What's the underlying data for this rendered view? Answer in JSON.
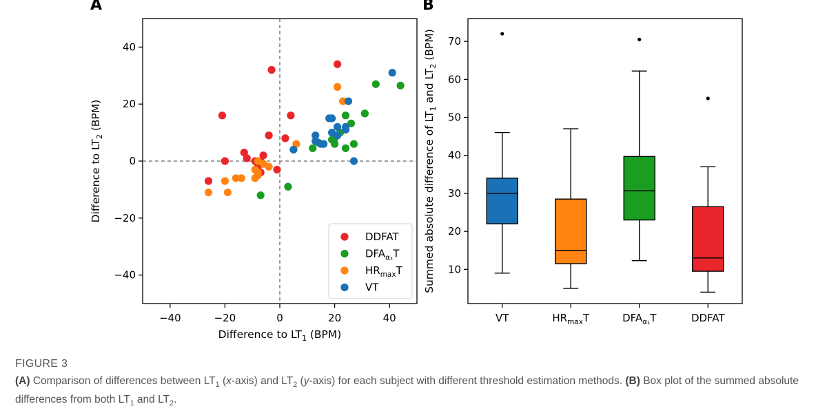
{
  "panel_a_letter": "A",
  "panel_b_letter": "B",
  "figure_label": "FIGURE 3",
  "caption": {
    "a_tag": "(A)",
    "a_text_1": " Comparison of differences between LT",
    "a_sub_1": "1",
    "a_text_2": " (",
    "a_x_italic": "x",
    "a_text_3": "-axis) and LT",
    "a_sub_2": "2",
    "a_text_4": " (",
    "a_y_italic": "y",
    "a_text_5": "-axis) for each subject with different threshold estimation methods. ",
    "b_tag": "(B)",
    "b_text_1": " Box plot of the summed absolute differences from both LT",
    "b_sub_1": "1",
    "b_text_2": " and LT",
    "b_sub_2": "2",
    "b_text_3": "."
  },
  "colors": {
    "DDFAT": "#e8262b",
    "DFA": "#1a9e22",
    "HRmaxT": "#ff8412",
    "VT": "#1a71b5"
  },
  "chart_data": [
    {
      "type": "scatter",
      "panel": "A",
      "xlabel": {
        "prefix": "Difference to LT",
        "sub": "1",
        "suffix": " (BPM)"
      },
      "ylabel": {
        "prefix": "Difference to LT",
        "sub": "2",
        "suffix": " (BPM)"
      },
      "xlim": [
        -50,
        50
      ],
      "ylim": [
        -50,
        50
      ],
      "xticks": [
        -40,
        -20,
        0,
        20,
        40
      ],
      "yticks": [
        -40,
        -20,
        0,
        20,
        40
      ],
      "reference_lines": {
        "x": 0,
        "y": 0,
        "style": "dashed"
      },
      "legend": {
        "placement": "lower-right",
        "entries": [
          {
            "key": "DDFAT",
            "label": "DDFAT",
            "sub": "",
            "tail": ""
          },
          {
            "key": "DFA",
            "label": "DFA",
            "sub": "α₁",
            "tail": "T"
          },
          {
            "key": "HRmaxT",
            "label": "HR",
            "sub": "max",
            "tail": "T"
          },
          {
            "key": "VT",
            "label": "VT",
            "sub": "",
            "tail": ""
          }
        ]
      },
      "series": [
        {
          "name": "DDFAT",
          "color_key": "DDFAT",
          "points": [
            [
              -3,
              32
            ],
            [
              21,
              34
            ],
            [
              -21,
              16
            ],
            [
              4,
              16
            ],
            [
              -4,
              9
            ],
            [
              2,
              8
            ],
            [
              -13,
              3
            ],
            [
              -6,
              2
            ],
            [
              -12,
              1
            ],
            [
              -20,
              0
            ],
            [
              -9,
              0
            ],
            [
              -7,
              0
            ],
            [
              -1,
              -3
            ],
            [
              -7,
              -4
            ],
            [
              -26,
              -7
            ],
            [
              -8,
              -2
            ]
          ]
        },
        {
          "name": "DFAα1T",
          "color_key": "DFA",
          "points": [
            [
              35,
              27
            ],
            [
              44,
              26.5
            ],
            [
              31,
              16.7
            ],
            [
              24,
              16
            ],
            [
              26,
              13.2
            ],
            [
              22,
              10
            ],
            [
              20,
              8
            ],
            [
              19,
              7.5
            ],
            [
              14,
              6.5
            ],
            [
              20,
              6
            ],
            [
              27,
              6
            ],
            [
              12,
              4.5
            ],
            [
              24,
              4.5
            ],
            [
              3,
              -9
            ],
            [
              -7,
              -12
            ]
          ]
        },
        {
          "name": "HRmaxT",
          "color_key": "HRmaxT",
          "points": [
            [
              21,
              26
            ],
            [
              23,
              21
            ],
            [
              6,
              6
            ],
            [
              -8,
              0
            ],
            [
              -6,
              -1
            ],
            [
              -4,
              -2
            ],
            [
              -9,
              -3
            ],
            [
              -8,
              -4
            ],
            [
              -8,
              -5
            ],
            [
              -9,
              -6
            ],
            [
              -16,
              -6
            ],
            [
              -14,
              -6
            ],
            [
              -20,
              -7
            ],
            [
              -26,
              -11
            ],
            [
              -19,
              -11
            ]
          ]
        },
        {
          "name": "VT",
          "color_key": "VT",
          "points": [
            [
              41,
              31
            ],
            [
              25,
              21
            ],
            [
              18,
              15
            ],
            [
              19,
              15
            ],
            [
              21,
              12
            ],
            [
              24,
              12
            ],
            [
              24,
              11
            ],
            [
              19,
              10
            ],
            [
              13,
              9
            ],
            [
              21,
              9
            ],
            [
              13,
              7
            ],
            [
              15,
              6
            ],
            [
              16,
              6
            ],
            [
              5,
              4
            ],
            [
              27,
              0
            ]
          ]
        }
      ]
    },
    {
      "type": "box",
      "panel": "B",
      "ylabel": {
        "part1": "Summed absolute difference of LT",
        "sub1": "1",
        "part2": " and LT",
        "sub2": "2",
        "part3": " (BPM)"
      },
      "ylim": [
        1,
        76
      ],
      "yticks": [
        10,
        20,
        30,
        40,
        50,
        60,
        70
      ],
      "boxes": [
        {
          "label": "VT",
          "sub": "",
          "tail": "",
          "color_key": "VT",
          "whisker_low": 9,
          "q1": 22,
          "median": 30,
          "q3": 34,
          "whisker_high": 46,
          "outliers": [
            72
          ]
        },
        {
          "label": "HR",
          "sub": "max",
          "tail": "T",
          "color_key": "HRmaxT",
          "whisker_low": 5,
          "q1": 11.5,
          "median": 15,
          "q3": 28.5,
          "whisker_high": 47,
          "outliers": []
        },
        {
          "label": "DFA",
          "sub": "α₁",
          "tail": "T",
          "color_key": "DFA",
          "whisker_low": 12.3,
          "q1": 23,
          "median": 30.7,
          "q3": 39.7,
          "whisker_high": 62.2,
          "outliers": [
            70.5
          ]
        },
        {
          "label": "DDFAT",
          "sub": "",
          "tail": "",
          "color_key": "DDFAT",
          "whisker_low": 4,
          "q1": 9.5,
          "median": 13,
          "q3": 26.5,
          "whisker_high": 37,
          "outliers": [
            55
          ]
        }
      ]
    }
  ]
}
